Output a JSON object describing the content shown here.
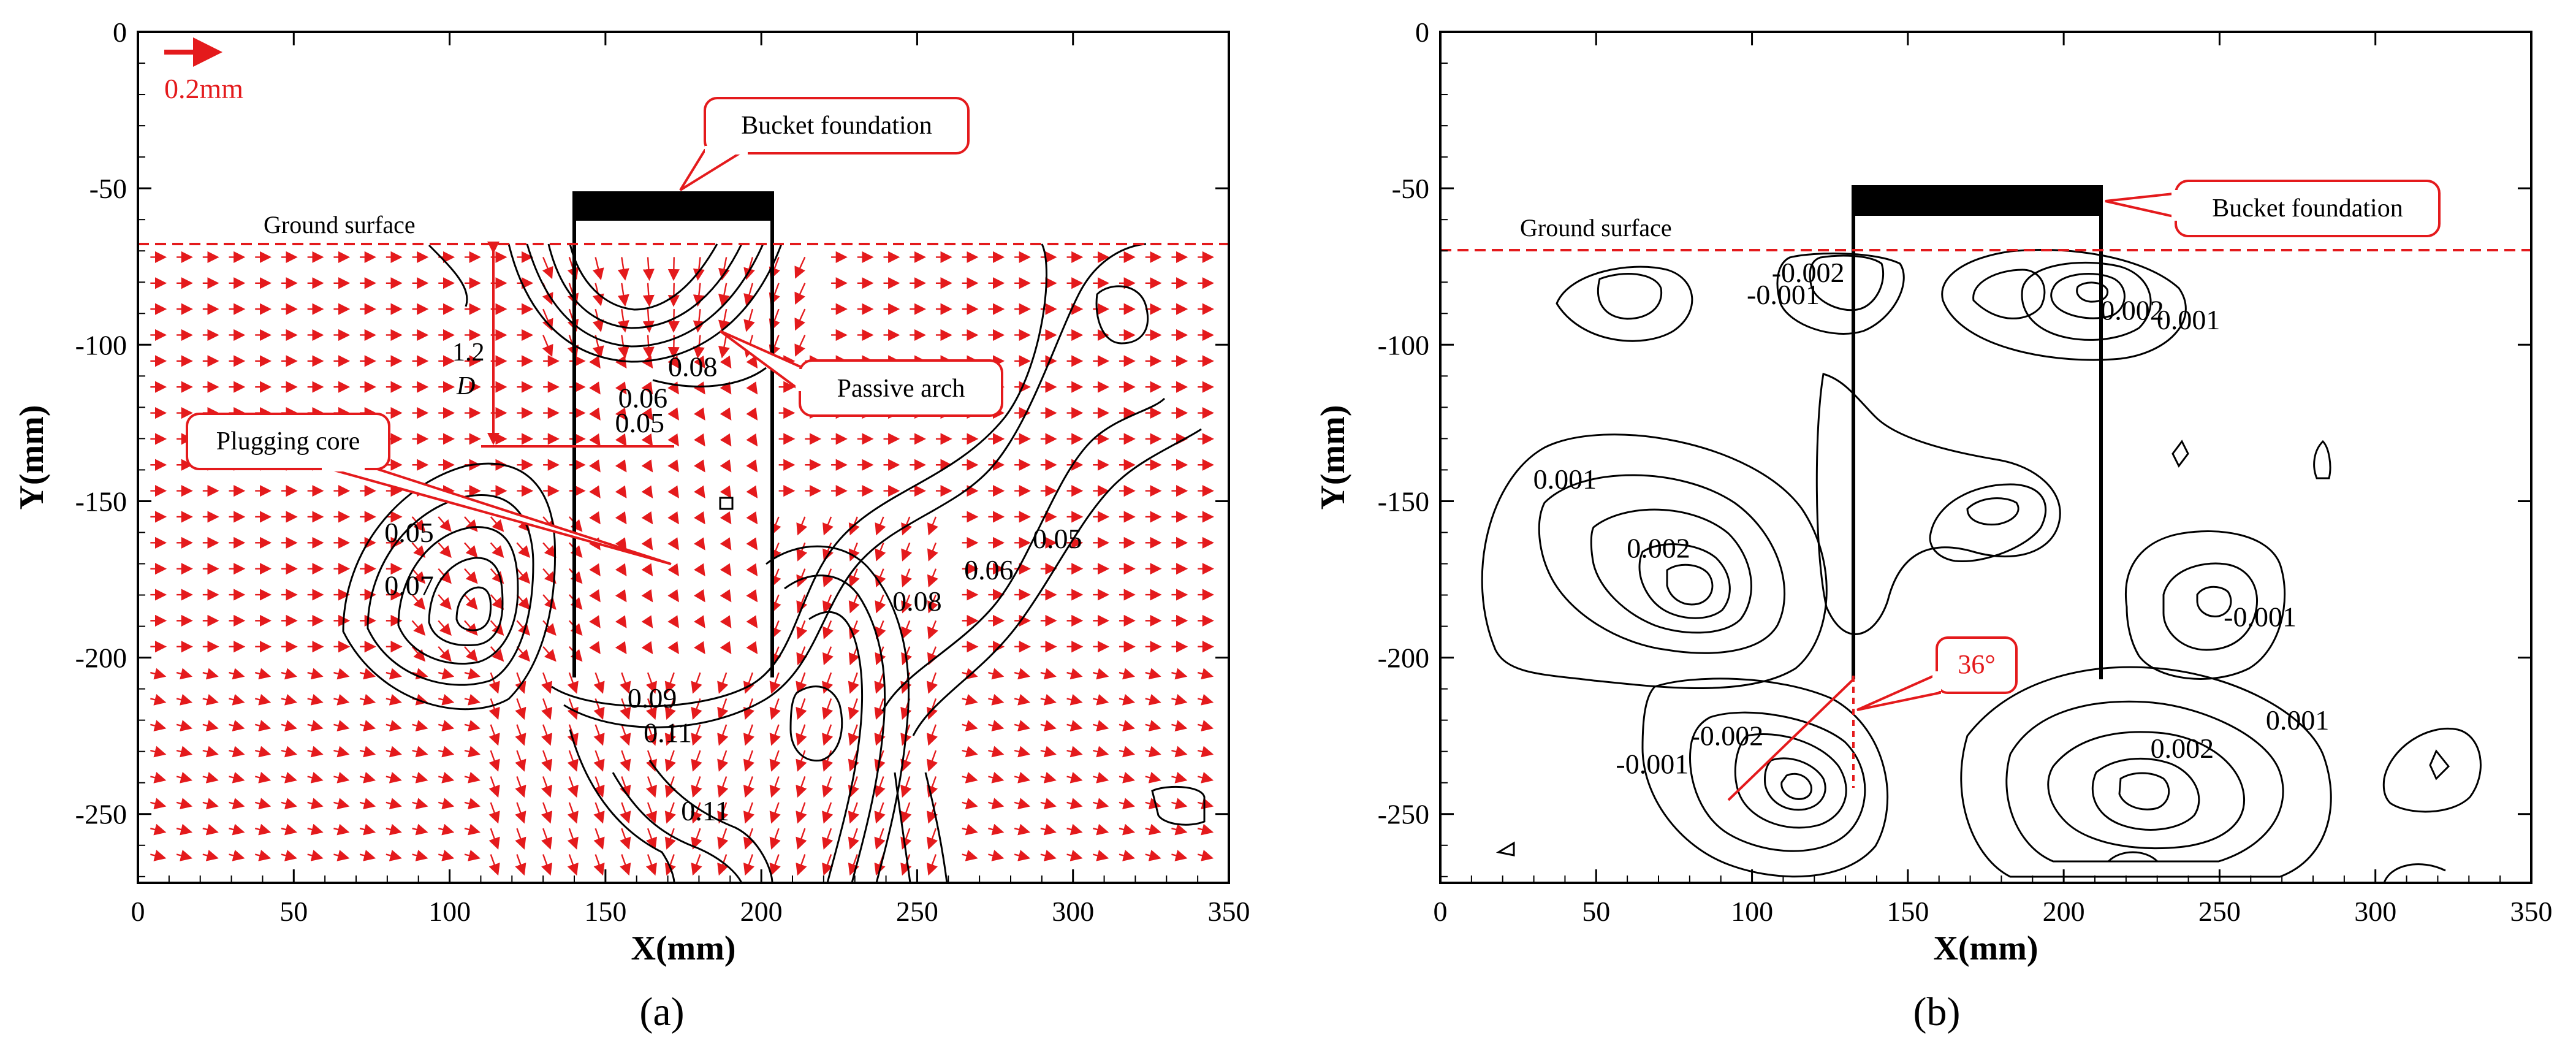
{
  "chart_data": [
    {
      "id": "a",
      "type": "contour",
      "panel_label": "(a)",
      "xlabel": "X(mm)",
      "ylabel": "Y(mm)",
      "xlim": [
        0,
        350
      ],
      "ylim": [
        -272,
        0
      ],
      "xticks": [
        0,
        50,
        100,
        150,
        200,
        250,
        300,
        350
      ],
      "yticks": [
        0,
        -50,
        -100,
        -150,
        -200,
        -250
      ],
      "scale_arrow_label": "0.2mm",
      "ground_surface": {
        "label": "Ground surface",
        "y": -68
      },
      "bucket": {
        "x": [
          140,
          202
        ],
        "top": -51,
        "bottom": -206
      },
      "callouts": {
        "bucket": "Bucket foundation",
        "arch": "Passive arch",
        "core": "Plugging core"
      },
      "dimension": {
        "line1": "1.2",
        "line2": "D",
        "from_y": -68,
        "to_y": -132
      },
      "contour_labels": [
        {
          "text": "0.08",
          "x": 178,
          "y": -110
        },
        {
          "text": "0.06",
          "x": 162,
          "y": -120
        },
        {
          "text": "0.05",
          "x": 161,
          "y": -128
        },
        {
          "text": "0.05",
          "x": 87,
          "y": -163
        },
        {
          "text": "0.07",
          "x": 87,
          "y": -180
        },
        {
          "text": "0.09",
          "x": 165,
          "y": -216
        },
        {
          "text": "0.11",
          "x": 170,
          "y": -227
        },
        {
          "text": "0.11",
          "x": 182,
          "y": -252
        },
        {
          "text": "0.08",
          "x": 250,
          "y": -185
        },
        {
          "text": "0.06",
          "x": 273,
          "y": -175
        },
        {
          "text": "0.05",
          "x": 295,
          "y": -165
        }
      ]
    },
    {
      "id": "b",
      "type": "contour",
      "panel_label": "(b)",
      "xlabel": "X(mm)",
      "ylabel": "Y(mm)",
      "xlim": [
        0,
        350
      ],
      "ylim": [
        -272,
        0
      ],
      "xticks": [
        0,
        50,
        100,
        150,
        200,
        250,
        300,
        350
      ],
      "yticks": [
        0,
        -50,
        -100,
        -150,
        -200,
        -250
      ],
      "ground_surface": {
        "label": "Ground surface",
        "y": -70
      },
      "bucket": {
        "x": [
          133,
          212
        ],
        "top": -49,
        "bottom": -205
      },
      "callouts": {
        "bucket": "Bucket foundation"
      },
      "angle_label": "36°",
      "contour_labels": [
        {
          "text": "-0.002",
          "x": 118,
          "y": -80
        },
        {
          "text": "-0.001",
          "x": 110,
          "y": -87
        },
        {
          "text": "0.002",
          "x": 222,
          "y": -92
        },
        {
          "text": "0.001",
          "x": 240,
          "y": -95
        },
        {
          "text": "0.001",
          "x": 40,
          "y": -146
        },
        {
          "text": "0.002",
          "x": 70,
          "y": -168
        },
        {
          "text": "-0.001",
          "x": 263,
          "y": -190
        },
        {
          "text": "-0.002",
          "x": 92,
          "y": -228
        },
        {
          "text": "-0.001",
          "x": 68,
          "y": -237
        },
        {
          "text": "0.002",
          "x": 238,
          "y": -232
        },
        {
          "text": "0.001",
          "x": 275,
          "y": -223
        }
      ]
    }
  ]
}
